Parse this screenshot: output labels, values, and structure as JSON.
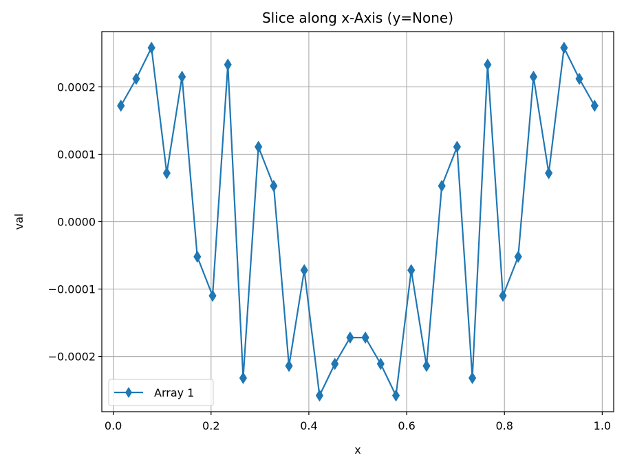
{
  "chart_data": {
    "type": "line",
    "title": "Slice along x-Axis (y=None)",
    "xlabel": "x",
    "ylabel": "val",
    "xlim": [
      -0.0234,
      1.0234
    ],
    "ylim": [
      -0.000282,
      0.000282
    ],
    "xticks": [
      0.0,
      0.2,
      0.4,
      0.6,
      0.8,
      1.0
    ],
    "xtick_labels": [
      "0.0",
      "0.2",
      "0.4",
      "0.6",
      "0.8",
      "1.0"
    ],
    "yticks": [
      -0.0002,
      -0.0001,
      0.0,
      0.0001,
      0.0002
    ],
    "ytick_labels": [
      "−0.0002",
      "−0.0001",
      "0.0000",
      "0.0001",
      "0.0002"
    ],
    "grid": true,
    "legend_position": "lower-left",
    "series": [
      {
        "name": "Array 1",
        "color": "#1f77b4",
        "marker": "thin-diamond",
        "x": [
          0.015625,
          0.046875,
          0.078125,
          0.109375,
          0.140625,
          0.171875,
          0.203125,
          0.234375,
          0.265625,
          0.296875,
          0.328125,
          0.359375,
          0.390625,
          0.421875,
          0.453125,
          0.484375,
          0.515625,
          0.546875,
          0.578125,
          0.609375,
          0.640625,
          0.671875,
          0.703125,
          0.734375,
          0.765625,
          0.796875,
          0.828125,
          0.859375,
          0.890625,
          0.921875,
          0.953125,
          0.984375
        ],
        "values": [
          0.000172,
          0.000212,
          0.000258,
          7.2e-05,
          0.000215,
          -5.2e-05,
          -0.00011,
          0.000233,
          -0.000232,
          0.000111,
          5.3e-05,
          -0.000214,
          -7.2e-05,
          -0.000258,
          -0.000211,
          -0.000172,
          -0.000172,
          -0.000211,
          -0.000258,
          -7.2e-05,
          -0.000214,
          5.3e-05,
          0.000111,
          -0.000232,
          0.000233,
          -0.00011,
          -5.2e-05,
          0.000215,
          7.2e-05,
          0.000258,
          0.000212,
          0.000172
        ]
      }
    ]
  }
}
